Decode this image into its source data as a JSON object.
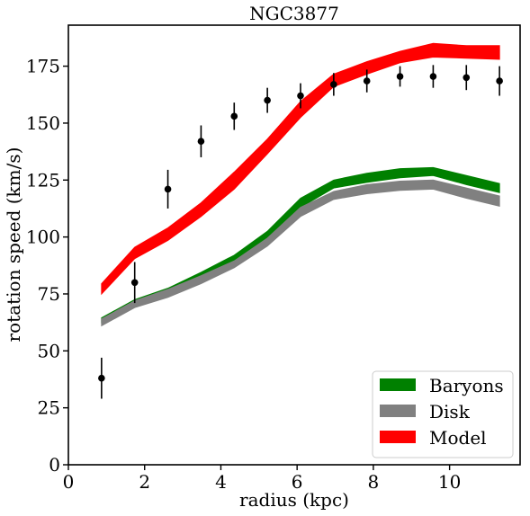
{
  "chart_data": {
    "type": "line",
    "title": "NGC3877",
    "xlabel": "radius (kpc)",
    "ylabel": "rotation speed (km/s)",
    "xlim": [
      0,
      11.85
    ],
    "ylim": [
      0,
      193
    ],
    "xticks": [
      0,
      2,
      4,
      6,
      8,
      10
    ],
    "yticks": [
      0,
      25,
      50,
      75,
      100,
      125,
      150,
      175
    ],
    "grid": false,
    "legend_position": "lower-right",
    "x": [
      0.87,
      1.74,
      2.61,
      3.48,
      4.35,
      5.22,
      6.09,
      6.96,
      7.83,
      8.7,
      9.57,
      10.44,
      11.31
    ],
    "series": [
      {
        "name": "Baryons",
        "color": "#008000",
        "lower": [
          62.5,
          70.5,
          75.5,
          82.0,
          89.0,
          99.0,
          113.0,
          121.5,
          124.0,
          126.0,
          127.0,
          123.0,
          119.5
        ],
        "upper": [
          64.5,
          72.5,
          77.5,
          84.5,
          92.0,
          102.5,
          117.0,
          125.0,
          128.0,
          130.0,
          130.5,
          127.0,
          123.5
        ]
      },
      {
        "name": "Disk",
        "color": "#808080",
        "lower": [
          61.0,
          69.0,
          73.5,
          79.5,
          86.5,
          96.0,
          109.0,
          116.5,
          119.0,
          120.5,
          121.0,
          117.0,
          113.5
        ],
        "upper": [
          64.0,
          72.0,
          77.0,
          83.0,
          89.5,
          99.5,
          113.0,
          120.0,
          123.0,
          124.5,
          125.0,
          121.5,
          118.0
        ]
      },
      {
        "name": "Model",
        "color": "#ff0000",
        "lower": [
          75.0,
          90.5,
          98.5,
          109.0,
          121.0,
          136.5,
          152.5,
          166.0,
          171.5,
          176.5,
          179.0,
          178.5,
          178.0
        ],
        "upper": [
          79.5,
          95.5,
          104.0,
          115.0,
          128.5,
          143.0,
          159.5,
          171.5,
          177.0,
          181.5,
          185.0,
          184.0,
          184.0
        ]
      }
    ],
    "observations": {
      "color": "#000000",
      "x": [
        0.87,
        1.74,
        2.61,
        3.48,
        4.35,
        5.22,
        6.09,
        6.96,
        7.83,
        8.7,
        9.57,
        10.44,
        11.31
      ],
      "y": [
        38,
        80,
        121,
        142,
        153,
        160,
        162,
        167,
        168.5,
        170.5,
        170.5,
        170,
        168.5
      ],
      "err": [
        9,
        9,
        8.5,
        7,
        6,
        5.5,
        5.5,
        5,
        5,
        4.5,
        5,
        5.5,
        6.5
      ]
    }
  }
}
